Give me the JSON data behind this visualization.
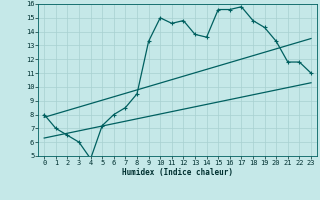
{
  "xlabel": "Humidex (Indice chaleur)",
  "bg_color": "#c5e8e8",
  "grid_color": "#a8d0d0",
  "line_color": "#006060",
  "xlim": [
    -0.5,
    23.5
  ],
  "ylim": [
    5,
    16
  ],
  "xticks": [
    0,
    1,
    2,
    3,
    4,
    5,
    6,
    7,
    8,
    9,
    10,
    11,
    12,
    13,
    14,
    15,
    16,
    17,
    18,
    19,
    20,
    21,
    22,
    23
  ],
  "yticks": [
    5,
    6,
    7,
    8,
    9,
    10,
    11,
    12,
    13,
    14,
    15,
    16
  ],
  "jagged_x": [
    0,
    1,
    2,
    3,
    4,
    5,
    6,
    7,
    8,
    9,
    10,
    11,
    12,
    13,
    14,
    15,
    16,
    17,
    18,
    19,
    20,
    21,
    22,
    23
  ],
  "jagged_y": [
    8.0,
    7.0,
    6.5,
    6.0,
    4.8,
    7.2,
    8.0,
    8.5,
    9.5,
    13.3,
    15.0,
    14.6,
    14.8,
    13.8,
    13.6,
    15.6,
    15.6,
    15.8,
    14.8,
    14.3,
    13.3,
    11.8,
    11.8,
    11.0
  ],
  "line2_x": [
    0,
    23
  ],
  "line2_y": [
    6.3,
    10.3
  ],
  "line3_x": [
    0,
    23
  ],
  "line3_y": [
    7.8,
    13.5
  ]
}
